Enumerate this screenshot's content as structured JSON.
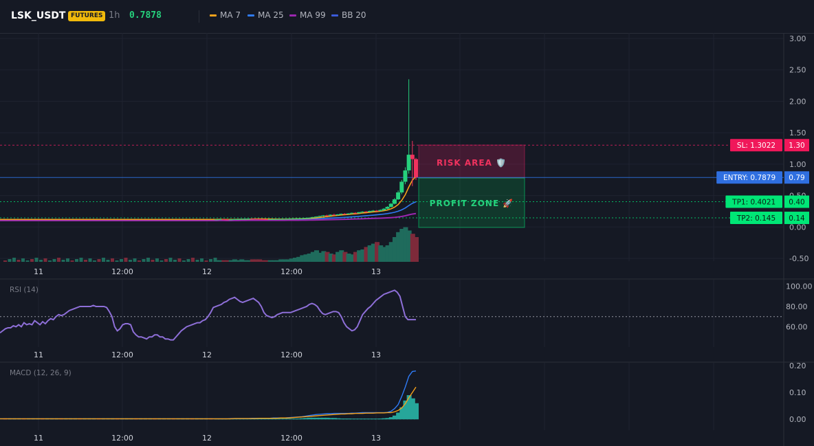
{
  "header": {
    "symbol": "LSK_USDT",
    "badge": "FUTURES",
    "interval": "1h",
    "price": "0.7878",
    "legend": [
      {
        "label": "MA 7",
        "color": "#f7a21b"
      },
      {
        "label": "MA 25",
        "color": "#2f7bf5"
      },
      {
        "label": "MA 99",
        "color": "#9c27b0"
      },
      {
        "label": "BB 20",
        "color": "#3b5bdb"
      }
    ]
  },
  "colors": {
    "up": "#26d07c",
    "down": "#f0325e",
    "vol_up": "#1f6b5c",
    "vol_down": "#7d2a3a",
    "risk": "#e91e63",
    "profit": "#00e676",
    "entry": "#2f7bf5",
    "rsi": "#8e6fd8",
    "macd": "#2f7bf5",
    "signal": "#f7a21b",
    "hist": "#26a69a"
  },
  "x_labels": [
    "11",
    "12:00",
    "12",
    "12:00",
    "13"
  ],
  "levels": {
    "sl": {
      "label": "SL: 1.3022",
      "axis": "1.30",
      "value": 1.3022
    },
    "entry": {
      "label": "ENTRY: 0.7879",
      "axis": "0.79",
      "value": 0.7879
    },
    "tp1": {
      "label": "TP1: 0.4021",
      "axis": "0.40",
      "value": 0.4021
    },
    "tp2": {
      "label": "TP2: 0.145",
      "axis": "0.14",
      "value": 0.145
    }
  },
  "zones": {
    "risk_label": "RISK AREA 🛡️",
    "profit_label": "PROFIT ZONE 🚀"
  },
  "rsi": {
    "title": "RSI (14)",
    "ticks": [
      "100.00",
      "80.00",
      "60.00"
    ],
    "tick_values": [
      100,
      80,
      60
    ],
    "level": 70,
    "range": [
      40,
      103
    ],
    "values": [
      54,
      56,
      58,
      59,
      59,
      61,
      60,
      62,
      60,
      64,
      62,
      63,
      62,
      66,
      64,
      62,
      65,
      63,
      66,
      68,
      67,
      70,
      72,
      71,
      72,
      74,
      76,
      77,
      78,
      79,
      80,
      80,
      80,
      80,
      80,
      81,
      80,
      80,
      80,
      80,
      79,
      75,
      70,
      60,
      56,
      58,
      62,
      63,
      63,
      62,
      55,
      52,
      50,
      50,
      49,
      48,
      50,
      50,
      52,
      52,
      50,
      50,
      48,
      48,
      47,
      47,
      50,
      53,
      56,
      58,
      60,
      61,
      62,
      63,
      64,
      64,
      66,
      67,
      70,
      74,
      79,
      80,
      81,
      82,
      84,
      85,
      87,
      88,
      89,
      87,
      85,
      84,
      85,
      86,
      87,
      88,
      86,
      84,
      80,
      74,
      71,
      70,
      69,
      70,
      72,
      73,
      74,
      74,
      74,
      74,
      75,
      76,
      77,
      78,
      79,
      80,
      82,
      83,
      82,
      80,
      76,
      73,
      72,
      73,
      74,
      75,
      75,
      74,
      70,
      64,
      60,
      58,
      56,
      57,
      60,
      66,
      72,
      75,
      78,
      80,
      83,
      86,
      88,
      90,
      92,
      93,
      94,
      95,
      96,
      94,
      90,
      80,
      70,
      67,
      67,
      67,
      67
    ]
  },
  "macd": {
    "title": "MACD (12, 26, 9)",
    "ticks": [
      "0.20",
      "0.10",
      "0.00"
    ],
    "tick_values": [
      0.2,
      0.1,
      0.0
    ],
    "range": [
      -0.025,
      0.205
    ]
  },
  "chart_data": {
    "type": "candlestick",
    "title": "",
    "y_ticks": [
      "3.00",
      "2.50",
      "2.00",
      "1.50",
      "1.00",
      "0.50",
      "0.00",
      "-0.50"
    ],
    "y_tick_values": [
      3.0,
      2.5,
      2.0,
      1.5,
      1.0,
      0.5,
      0.0,
      -0.5
    ],
    "ylim": [
      -0.5,
      3.0
    ],
    "note_candles": "OHLC per hour, approximate",
    "candles": [
      [
        0.12,
        0.12,
        0.115,
        0.12
      ],
      [
        0.12,
        0.125,
        0.118,
        0.122
      ],
      [
        0.122,
        0.125,
        0.118,
        0.12
      ],
      [
        0.12,
        0.124,
        0.116,
        0.118
      ],
      [
        0.118,
        0.122,
        0.115,
        0.12
      ],
      [
        0.12,
        0.126,
        0.118,
        0.124
      ],
      [
        0.124,
        0.128,
        0.12,
        0.125
      ],
      [
        0.125,
        0.13,
        0.122,
        0.128
      ],
      [
        0.128,
        0.132,
        0.125,
        0.13
      ],
      [
        0.13,
        0.134,
        0.127,
        0.132
      ],
      [
        0.132,
        0.135,
        0.128,
        0.13
      ],
      [
        0.13,
        0.133,
        0.126,
        0.128
      ],
      [
        0.128,
        0.13,
        0.124,
        0.126
      ],
      [
        0.126,
        0.128,
        0.122,
        0.124
      ],
      [
        0.124,
        0.127,
        0.12,
        0.122
      ],
      [
        0.122,
        0.126,
        0.119,
        0.124
      ],
      [
        0.124,
        0.127,
        0.121,
        0.125
      ],
      [
        0.125,
        0.129,
        0.123,
        0.127
      ],
      [
        0.127,
        0.13,
        0.124,
        0.128
      ],
      [
        0.128,
        0.131,
        0.125,
        0.129
      ],
      [
        0.129,
        0.133,
        0.126,
        0.131
      ],
      [
        0.131,
        0.135,
        0.128,
        0.133
      ],
      [
        0.133,
        0.136,
        0.13,
        0.134
      ],
      [
        0.134,
        0.138,
        0.131,
        0.136
      ],
      [
        0.136,
        0.14,
        0.133,
        0.138
      ],
      [
        0.138,
        0.145,
        0.135,
        0.143
      ],
      [
        0.143,
        0.15,
        0.14,
        0.148
      ],
      [
        0.148,
        0.16,
        0.145,
        0.158
      ],
      [
        0.158,
        0.17,
        0.152,
        0.165
      ],
      [
        0.165,
        0.18,
        0.16,
        0.175
      ],
      [
        0.175,
        0.19,
        0.168,
        0.185
      ],
      [
        0.185,
        0.195,
        0.175,
        0.18
      ],
      [
        0.18,
        0.2,
        0.175,
        0.195
      ],
      [
        0.195,
        0.21,
        0.185,
        0.19
      ],
      [
        0.19,
        0.205,
        0.18,
        0.2
      ],
      [
        0.2,
        0.215,
        0.19,
        0.21
      ],
      [
        0.21,
        0.22,
        0.2,
        0.205
      ],
      [
        0.205,
        0.22,
        0.2,
        0.215
      ],
      [
        0.215,
        0.23,
        0.205,
        0.225
      ],
      [
        0.225,
        0.235,
        0.21,
        0.22
      ],
      [
        0.22,
        0.24,
        0.215,
        0.235
      ],
      [
        0.235,
        0.25,
        0.225,
        0.245
      ],
      [
        0.245,
        0.255,
        0.235,
        0.24
      ],
      [
        0.24,
        0.26,
        0.235,
        0.255
      ],
      [
        0.255,
        0.27,
        0.245,
        0.26
      ],
      [
        0.26,
        0.27,
        0.25,
        0.255
      ],
      [
        0.255,
        0.28,
        0.25,
        0.27
      ],
      [
        0.27,
        0.3,
        0.26,
        0.29
      ],
      [
        0.29,
        0.33,
        0.28,
        0.32
      ],
      [
        0.32,
        0.38,
        0.31,
        0.37
      ],
      [
        0.37,
        0.46,
        0.36,
        0.44
      ],
      [
        0.44,
        0.58,
        0.43,
        0.55
      ],
      [
        0.55,
        0.75,
        0.52,
        0.72
      ],
      [
        0.72,
        0.95,
        0.68,
        0.9
      ],
      [
        0.9,
        2.35,
        0.85,
        1.15
      ],
      [
        1.15,
        1.37,
        0.65,
        1.08
      ],
      [
        1.08,
        1.1,
        0.75,
        0.79
      ]
    ],
    "volume": [
      2,
      2,
      2,
      2,
      2,
      3,
      2,
      3,
      2,
      2,
      3,
      3,
      3,
      2,
      2,
      2,
      2,
      2,
      3,
      3,
      3,
      4,
      5,
      6,
      8,
      9,
      10,
      12,
      14,
      11,
      13,
      12,
      10,
      9,
      12,
      14,
      12,
      10,
      9,
      12,
      14,
      15,
      18,
      20,
      22,
      24,
      20,
      18,
      20,
      24,
      30,
      36,
      40,
      42,
      38,
      34,
      30
    ],
    "macd_line": [
      0.002,
      0.002,
      0.002,
      0.002,
      0.003,
      0.003,
      0.003,
      0.003,
      0.003,
      0.003,
      0.004,
      0.004,
      0.004,
      0.004,
      0.004,
      0.004,
      0.005,
      0.005,
      0.005,
      0.005,
      0.006,
      0.007,
      0.008,
      0.009,
      0.01,
      0.012,
      0.014,
      0.016,
      0.018,
      0.019,
      0.02,
      0.021,
      0.021,
      0.022,
      0.022,
      0.022,
      0.022,
      0.022,
      0.023,
      0.023,
      0.024,
      0.025,
      0.025,
      0.025,
      0.025,
      0.025,
      0.025,
      0.025,
      0.026,
      0.03,
      0.04,
      0.055,
      0.085,
      0.12,
      0.16,
      0.178,
      0.18
    ],
    "signal_line": [
      0.002,
      0.002,
      0.002,
      0.002,
      0.002,
      0.003,
      0.003,
      0.003,
      0.003,
      0.003,
      0.003,
      0.003,
      0.004,
      0.004,
      0.004,
      0.004,
      0.004,
      0.004,
      0.005,
      0.005,
      0.005,
      0.006,
      0.007,
      0.008,
      0.009,
      0.01,
      0.011,
      0.012,
      0.013,
      0.014,
      0.015,
      0.016,
      0.017,
      0.018,
      0.019,
      0.02,
      0.02,
      0.021,
      0.021,
      0.022,
      0.022,
      0.022,
      0.023,
      0.023,
      0.023,
      0.024,
      0.024,
      0.024,
      0.025,
      0.025,
      0.028,
      0.033,
      0.042,
      0.058,
      0.08,
      0.1,
      0.12
    ],
    "histogram": [
      0,
      0,
      0,
      0,
      0.001,
      0.001,
      0.001,
      0.001,
      0.001,
      0.001,
      0.001,
      0.001,
      0.001,
      0.001,
      0.001,
      0.001,
      0.001,
      0.001,
      0.001,
      0.001,
      0.002,
      0.002,
      0.003,
      0.003,
      0.004,
      0.005,
      0.006,
      0.006,
      0.006,
      0.006,
      0.006,
      0.006,
      0.005,
      0.005,
      0.004,
      0.003,
      0.003,
      0.003,
      0.002,
      0.002,
      0.002,
      0.002,
      0.002,
      0.002,
      0.002,
      0.002,
      0.003,
      0.004,
      0.005,
      0.008,
      0.014,
      0.025,
      0.045,
      0.07,
      0.09,
      0.078,
      0.06
    ]
  }
}
